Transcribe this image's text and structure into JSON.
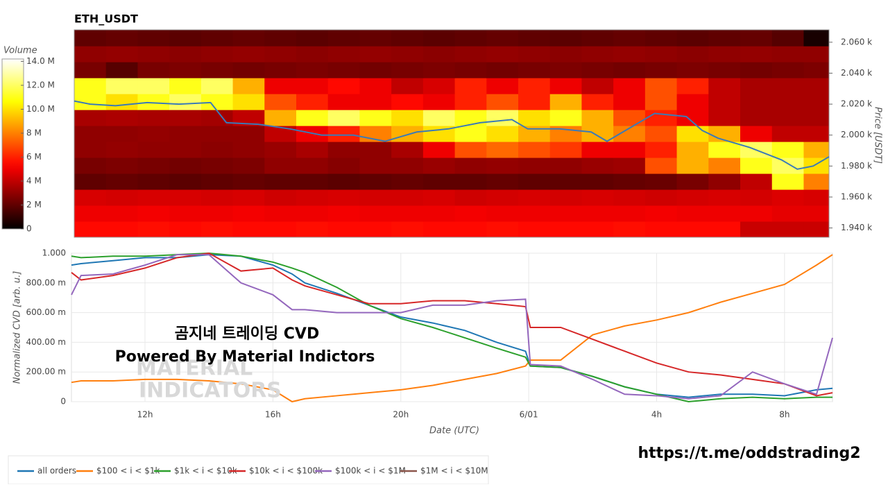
{
  "chart_data": [
    {
      "type": "heatmap",
      "title": "ETH_USDT",
      "colorbar_title": "Volume",
      "colormap": "hot",
      "y_label": "Price [USDT]",
      "clim": [
        0,
        14.2
      ],
      "cticks": [
        0,
        {
          "value": 2,
          "label": "2 M"
        },
        {
          "value": 4,
          "label": "4 M"
        },
        {
          "value": 6,
          "label": "6 M"
        },
        {
          "value": 8,
          "label": "8 M"
        },
        {
          "value": 10,
          "label": "10.0 M"
        },
        {
          "value": 12,
          "label": "12.0 M"
        },
        {
          "value": 14,
          "label": "14.0 M"
        }
      ],
      "xlim": [
        9.7,
        33.5
      ],
      "ylim": [
        1934,
        2068
      ],
      "yticks": [
        {
          "value": 1940,
          "label": "1.940 k"
        },
        {
          "value": 1960,
          "label": "1.960 k"
        },
        {
          "value": 1980,
          "label": "1.980 k"
        },
        {
          "value": 2000,
          "label": "2.000 k"
        },
        {
          "value": 2020,
          "label": "2.020 k"
        },
        {
          "value": 2040,
          "label": "2.040 k"
        },
        {
          "value": 2060,
          "label": "2.060 k"
        }
      ],
      "x_bins": [
        9.7,
        10.7,
        11.7,
        12.7,
        13.7,
        14.7,
        15.7,
        16.7,
        17.7,
        18.7,
        19.7,
        20.7,
        21.7,
        22.7,
        23.7,
        24.7,
        25.7,
        26.7,
        27.7,
        28.7,
        29.7,
        30.7,
        31.7,
        32.7,
        33.5
      ],
      "y_bins": [
        1934,
        1944.3,
        1954.6,
        1964.9,
        1975.2,
        1985.5,
        1995.8,
        2006.1,
        2016.4,
        2026.7,
        2037,
        2047.3,
        2057.6,
        2068
      ],
      "z": [
        [
          5.5,
          5.5,
          5.6,
          5.5,
          5.6,
          5.5,
          5.5,
          5.6,
          5.5,
          5.5,
          5.6,
          5.5,
          5.5,
          5.6,
          5.5,
          5.5,
          5.5,
          5.6,
          5.5,
          5.5,
          5.5,
          4.2,
          4.2,
          4.2
        ],
        [
          5,
          5,
          5.1,
          5,
          5,
          5.1,
          5,
          5,
          5.1,
          5,
          5,
          5,
          5.1,
          5,
          5,
          5,
          5,
          5,
          5.1,
          5,
          5,
          5,
          4.8,
          4.8
        ],
        [
          4.5,
          4.4,
          4.5,
          4.5,
          4.4,
          4.5,
          4.3,
          4.4,
          4.5,
          4.4,
          4.4,
          4.5,
          4.3,
          4.4,
          4.5,
          4.4,
          4.5,
          4.4,
          4.3,
          4.4,
          4.5,
          4.4,
          4.6,
          4.5
        ],
        [
          2,
          2.1,
          2,
          1.9,
          2,
          2.1,
          2,
          2,
          1.9,
          2,
          2.1,
          2,
          2,
          2.1,
          2,
          2,
          2,
          2.1,
          2.2,
          2.5,
          3,
          4,
          11,
          8
        ],
        [
          2.5,
          2.6,
          2.5,
          2.4,
          2.5,
          2.6,
          3,
          3,
          2.8,
          3,
          3,
          3.2,
          3,
          3.1,
          3,
          3,
          3.2,
          3.3,
          7,
          9,
          8,
          11,
          12,
          10
        ],
        [
          3,
          3.1,
          3,
          3,
          2.9,
          3,
          3.2,
          3.5,
          3,
          3,
          3.5,
          5,
          7,
          7.5,
          7,
          6.5,
          5,
          5,
          6,
          9,
          11,
          12,
          11,
          9
        ],
        [
          3,
          3,
          3.1,
          3,
          3,
          3,
          4,
          5,
          6,
          8,
          9,
          10,
          11,
          10,
          9,
          8,
          9,
          8,
          7,
          10,
          9,
          5,
          4,
          4
        ],
        [
          3.5,
          3.6,
          3.5,
          3.5,
          3.4,
          4,
          9,
          11,
          12,
          11,
          10,
          12,
          11,
          12,
          10,
          11,
          9,
          7,
          6,
          5,
          4,
          3.5,
          3.5,
          3.5
        ],
        [
          11,
          10,
          11,
          12,
          11,
          10,
          7,
          6,
          5,
          5,
          5.5,
          5,
          6,
          7,
          6,
          9,
          6,
          5,
          7,
          5,
          4,
          3.5,
          3.5,
          3.5
        ],
        [
          11,
          12,
          12,
          11,
          12,
          9,
          5,
          5,
          5.5,
          5,
          4,
          4.5,
          6,
          5,
          6,
          5,
          4,
          5,
          7,
          6,
          4,
          3.5,
          3.5,
          3.5
        ],
        [
          2.5,
          1.8,
          2.5,
          2.6,
          2.5,
          2.4,
          2.5,
          2.6,
          2.5,
          2.4,
          2.5,
          2.6,
          2.5,
          2.4,
          2.5,
          2.6,
          2.5,
          2.4,
          2.5,
          2.6,
          2.5,
          2.4,
          2.5,
          2.6
        ],
        [
          3,
          3.1,
          3,
          2.9,
          3,
          3.1,
          3,
          2.9,
          3,
          3.1,
          3,
          2.9,
          3,
          3.1,
          3,
          2.9,
          3,
          3.1,
          3,
          2.9,
          3,
          3.1,
          3,
          3
        ],
        [
          2,
          2.1,
          2,
          1.9,
          2,
          2.1,
          2,
          1.9,
          2,
          2.1,
          2,
          1.9,
          2,
          2.1,
          2,
          1.9,
          2,
          2.1,
          2,
          1.9,
          2,
          2.1,
          1.8,
          0.5
        ]
      ],
      "price": {
        "color": "#3a7ab8",
        "x": [
          9.7,
          10.2,
          11,
          12,
          13,
          14,
          14.5,
          15.5,
          16.5,
          17.5,
          18.5,
          19.5,
          20.5,
          21.5,
          22.5,
          23.5,
          24,
          25,
          26,
          26.5,
          27,
          28,
          29,
          29.5,
          30,
          31,
          32,
          32.5,
          33,
          33.5
        ],
        "values": [
          2022,
          2020,
          2019,
          2021,
          2020,
          2021,
          2008,
          2007,
          2004,
          2000,
          2000,
          1996,
          2002,
          2004,
          2008,
          2010,
          2004,
          2004,
          2002,
          1996,
          2002,
          2014,
          2012,
          2003,
          1998,
          1992,
          1984,
          1978,
          1980,
          1986
        ]
      }
    },
    {
      "type": "line",
      "x_label": "Date (UTC)",
      "y_label": "Normalized CVD [arb. u.]",
      "xlim": [
        9.7,
        33.5
      ],
      "ylim": [
        0,
        1
      ],
      "grid": true,
      "xticks": [
        {
          "value": 12,
          "label": "12h"
        },
        {
          "value": 16,
          "label": "16h"
        },
        {
          "value": 20,
          "label": "20h"
        },
        {
          "value": 24,
          "label": "6/01"
        },
        {
          "value": 28,
          "label": "4h"
        },
        {
          "value": 32,
          "label": "8h"
        }
      ],
      "yticks": [
        0,
        {
          "value": 0.2,
          "label": "200.00 m"
        },
        {
          "value": 0.4,
          "label": "400.00 m"
        },
        {
          "value": 0.6,
          "label": "600.00 m"
        },
        {
          "value": 0.8,
          "label": "800.00 m"
        },
        {
          "value": 1,
          "label": "1.000"
        }
      ],
      "x": [
        9.7,
        10,
        11,
        12,
        13,
        14,
        15,
        16,
        16.6,
        17,
        18,
        19,
        20,
        21,
        22,
        23,
        23.9,
        24.05,
        25,
        26,
        27,
        28,
        29,
        30,
        31,
        32,
        33,
        33.5
      ],
      "series": [
        {
          "name": "all orders",
          "color": "#1f77b4",
          "values": [
            0.92,
            0.93,
            0.95,
            0.97,
            0.97,
            0.99,
            0.98,
            0.92,
            0.86,
            0.8,
            0.73,
            0.65,
            0.57,
            0.53,
            0.48,
            0.4,
            0.34,
            0.24,
            0.23,
            0.17,
            0.1,
            0.05,
            0.03,
            0.05,
            0.05,
            0.04,
            0.08,
            0.09
          ]
        },
        {
          "name": "$100 < i < $1k",
          "color": "#ff7f0e",
          "values": [
            0.13,
            0.14,
            0.14,
            0.15,
            0.15,
            0.14,
            0.12,
            0.08,
            0,
            0.02,
            0.04,
            0.06,
            0.08,
            0.11,
            0.15,
            0.19,
            0.24,
            0.28,
            0.28,
            0.45,
            0.51,
            0.55,
            0.6,
            0.67,
            0.73,
            0.79,
            0.92,
            0.99
          ]
        },
        {
          "name": "$1k < i < $10k",
          "color": "#2ca02c",
          "values": [
            0.98,
            0.97,
            0.98,
            0.98,
            0.99,
            1,
            0.98,
            0.94,
            0.9,
            0.87,
            0.77,
            0.65,
            0.56,
            0.5,
            0.43,
            0.36,
            0.3,
            0.24,
            0.23,
            0.17,
            0.1,
            0.05,
            0,
            0.02,
            0.03,
            0.02,
            0.03,
            0.03
          ]
        },
        {
          "name": "$10k < i < $100k",
          "color": "#d62728",
          "values": [
            0.87,
            0.82,
            0.85,
            0.9,
            0.97,
            1,
            0.88,
            0.9,
            0.82,
            0.78,
            0.72,
            0.66,
            0.66,
            0.68,
            0.68,
            0.66,
            0.64,
            0.5,
            0.5,
            0.42,
            0.34,
            0.26,
            0.2,
            0.18,
            0.15,
            0.12,
            0.04,
            0.06
          ]
        },
        {
          "name": "$100k < i < $1M",
          "color": "#9467bd",
          "values": [
            0.72,
            0.85,
            0.86,
            0.92,
            0.99,
            0.99,
            0.8,
            0.72,
            0.62,
            0.62,
            0.6,
            0.6,
            0.6,
            0.65,
            0.65,
            0.68,
            0.69,
            0.25,
            0.24,
            0.15,
            0.05,
            0.04,
            0.02,
            0.04,
            0.2,
            0.12,
            0.05,
            0.43
          ]
        },
        {
          "name": "$1M < i < $10M",
          "color": "#8c564b",
          "values": [
            null,
            null,
            null,
            null,
            null,
            null,
            null,
            null,
            null,
            null,
            null,
            null,
            null,
            null,
            null,
            null,
            null,
            null,
            null,
            null,
            null,
            null,
            null,
            null,
            null,
            null,
            null,
            null
          ]
        }
      ],
      "annotations": [
        "곰지네 트레이딩 CVD",
        "Powered By Material Indictors"
      ],
      "watermark": [
        "MATERIAL",
        "INDICATORS"
      ]
    }
  ],
  "link": "https://t.me/oddstrading2"
}
